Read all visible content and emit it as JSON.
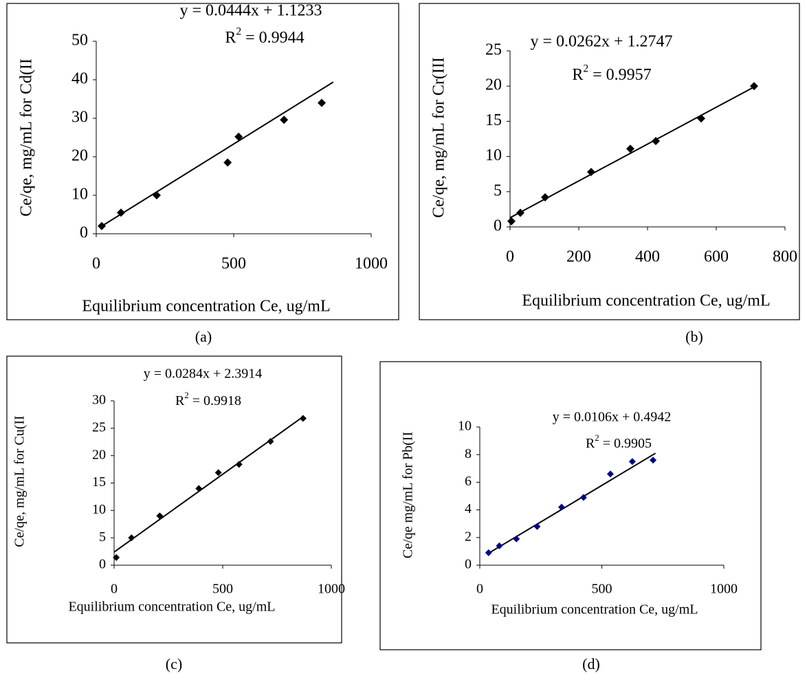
{
  "chart_data": [
    {
      "type": "scatter",
      "caption": "(a)",
      "x_label": "Equilibrium concentration Ce, ug/mL",
      "y_label": "Ce/qe, mg/mL  for Cd(II",
      "equation": "y = 0.0444x + 1.1233",
      "r2": [
        "R",
        "2",
        " = 0.9944"
      ],
      "color": "#000000",
      "x": [
        20,
        90,
        220,
        478,
        518,
        683,
        820
      ],
      "values": [
        2,
        5.5,
        10,
        18.5,
        25.2,
        29.6,
        34
      ],
      "trendline": {
        "x": [
          18,
          862
        ],
        "values": [
          1.9,
          39.4
        ]
      },
      "xlim": [
        0,
        1000
      ],
      "xticks": [
        0,
        500,
        1000
      ],
      "ylim": [
        0,
        50
      ],
      "yticks": [
        0,
        10,
        20,
        30,
        40,
        50
      ],
      "grid": false
    },
    {
      "type": "scatter",
      "caption": "(b)",
      "x_label": "Equilibrium concentration Ce, ug/mL",
      "y_label": "Ce/qe, mg/mL  for Cr(III",
      "equation": "y = 0.0262x + 1.2747",
      "r2": [
        "R",
        "2",
        " = 0.9957"
      ],
      "color": "#000000",
      "x": [
        4,
        30,
        102,
        236,
        350,
        424,
        556,
        710
      ],
      "values": [
        0.8,
        2,
        4.2,
        7.8,
        11.1,
        12.2,
        15.4,
        20
      ],
      "trendline": {
        "x": [
          0,
          715
        ],
        "values": [
          1.3,
          20
        ]
      },
      "xlim": [
        0,
        800
      ],
      "xticks": [
        0,
        200,
        400,
        600,
        800
      ],
      "ylim": [
        0,
        25
      ],
      "yticks": [
        0,
        5,
        10,
        15,
        20,
        25
      ],
      "grid": false
    },
    {
      "type": "scatter",
      "caption": "(c)",
      "x_label": "Equilibrium concentration Ce, ug/mL",
      "y_label": "Ce/qe, mg/mL for Cu(II",
      "equation": "y = 0.0284x + 2.3914",
      "r2": [
        "R",
        "2",
        " = 0.9918"
      ],
      "color": "#000000",
      "x": [
        10,
        80,
        210,
        390,
        480,
        575,
        720,
        870
      ],
      "values": [
        1.4,
        5,
        9,
        14,
        16.9,
        18.4,
        22.6,
        26.8
      ],
      "trendline": {
        "x": [
          0,
          870
        ],
        "values": [
          2.4,
          27.1
        ]
      },
      "xlim": [
        0,
        1000
      ],
      "xticks": [
        0,
        500,
        1000
      ],
      "ylim": [
        0,
        30
      ],
      "yticks": [
        0,
        5,
        10,
        15,
        20,
        25,
        30
      ],
      "grid": false
    },
    {
      "type": "scatter",
      "caption": "(d)",
      "x_label": "Equilibrium concentration Ce, ug/mL",
      "y_label": "Ce/qe mg/mL for Pb(II",
      "equation": "y = 0.0106x + 0.4942",
      "r2": [
        "R",
        "2",
        " = 0.9905"
      ],
      "color": "#00008b",
      "x": [
        36,
        80,
        150,
        235,
        335,
        425,
        535,
        625,
        710
      ],
      "values": [
        0.9,
        1.4,
        1.9,
        2.8,
        4.2,
        4.9,
        6.6,
        7.5,
        7.6
      ],
      "trendline": {
        "x": [
          30,
          720
        ],
        "values": [
          0.8,
          8.1
        ]
      },
      "xlim": [
        0,
        1000
      ],
      "xticks": [
        0,
        500,
        1000
      ],
      "ylim": [
        0,
        10
      ],
      "yticks": [
        0,
        2,
        4,
        6,
        8,
        10
      ],
      "grid": false
    }
  ]
}
